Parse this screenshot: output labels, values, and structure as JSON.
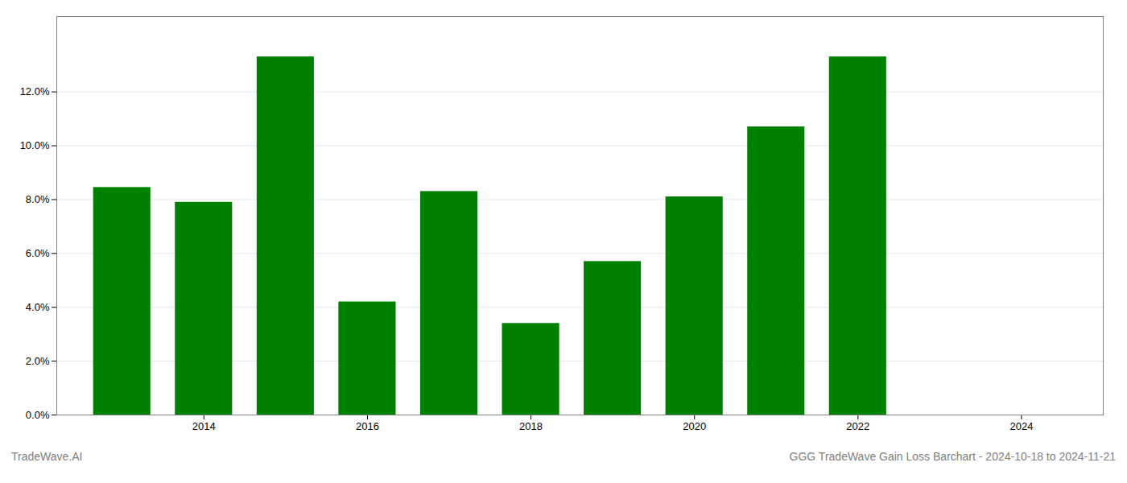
{
  "chart_data": {
    "type": "bar",
    "x": [
      2013,
      2014,
      2015,
      2016,
      2017,
      2018,
      2019,
      2020,
      2021,
      2022
    ],
    "values": [
      0.0845,
      0.079,
      0.133,
      0.042,
      0.083,
      0.034,
      0.057,
      0.081,
      0.107,
      0.133
    ],
    "color": "#008000",
    "xlim": [
      2012.2,
      2025.0
    ],
    "xticks": [
      2014,
      2016,
      2018,
      2020,
      2022,
      2024
    ],
    "ylim": [
      0,
      0.148
    ],
    "yticks": [
      {
        "value": 0.0,
        "label": "0.0%"
      },
      {
        "value": 0.02,
        "label": "2.0%"
      },
      {
        "value": 0.04,
        "label": "4.0%"
      },
      {
        "value": 0.06,
        "label": "6.0%"
      },
      {
        "value": 0.08,
        "label": "8.0%"
      },
      {
        "value": 0.1,
        "label": "10.0%"
      },
      {
        "value": 0.12,
        "label": "12.0%"
      }
    ],
    "grid": true,
    "annotations": [
      "TradeWave.AI",
      "GGG TradeWave Gain Loss Barchart - 2024-10-18 to 2024-11-21"
    ]
  }
}
